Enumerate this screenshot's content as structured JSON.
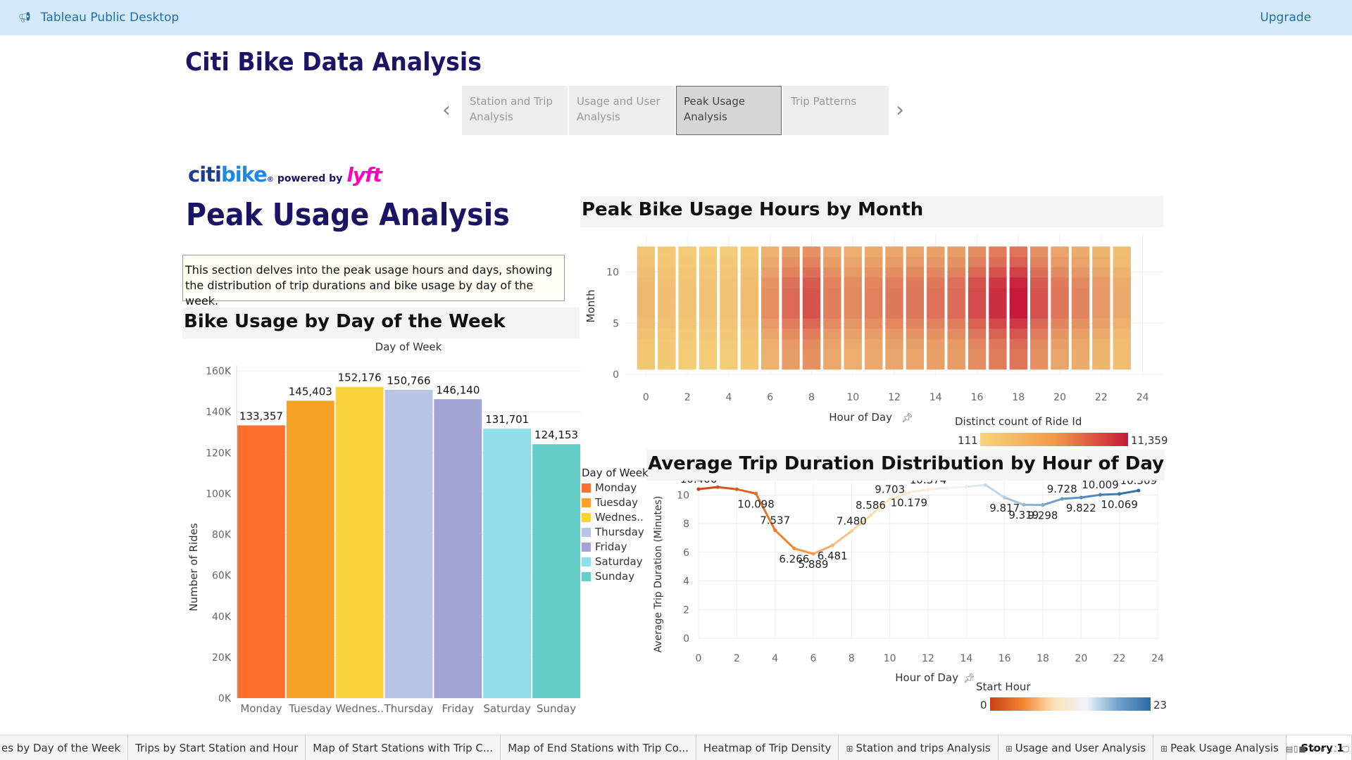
{
  "app": {
    "title": "Tableau Public Desktop",
    "upgrade": "Upgrade",
    "icon": "megaphone-icon"
  },
  "story": {
    "title": "Citi Bike Data Analysis",
    "points": [
      {
        "line1": "Station and Trip",
        "line2": "Analysis",
        "active": false
      },
      {
        "line1": "Usage and User",
        "line2": "Analysis",
        "active": false
      },
      {
        "line1": "Peak Usage",
        "line2": "Analysis",
        "active": true
      },
      {
        "line1": "Trip Patterns",
        "line2": "",
        "active": false
      }
    ],
    "prev_icon": "chevron-left-icon",
    "next_icon": "chevron-right-icon"
  },
  "logo": {
    "citi": "citi",
    "bike": "bike",
    "reg": "®",
    "powered": "powered by",
    "lyft": "lyft"
  },
  "dashboard": {
    "title": "Peak Usage Analysis",
    "description": "This section delves into the peak usage hours and days, showing the distribution of trip durations and bike usage by day of the week."
  },
  "bar_chart": {
    "title": "Bike Usage by Day of the Week",
    "header": "Day of Week",
    "ylabel": "Number of Rides",
    "yticks": [
      "0K",
      "20K",
      "40K",
      "60K",
      "80K",
      "100K",
      "120K",
      "140K",
      "160K"
    ],
    "legend_title": "Day of Week",
    "legend": [
      "Monday",
      "Tuesday",
      "Wednes..",
      "Thursday",
      "Friday",
      "Saturday",
      "Sunday"
    ]
  },
  "heatmap": {
    "title": "Peak Bike Usage Hours by Month",
    "xlabel": "Hour of Day",
    "ylabel": "Month",
    "xticks": [
      "0",
      "2",
      "4",
      "6",
      "8",
      "10",
      "12",
      "14",
      "16",
      "18",
      "20",
      "22",
      "24"
    ],
    "yticks": [
      "0",
      "5",
      "10"
    ],
    "legend_title": "Distinct count of Ride Id",
    "legend_min": "111",
    "legend_max": "11,359",
    "pin_icon": "pin-icon"
  },
  "line_chart": {
    "title": "Average Trip Duration Distribution by Hour of Day",
    "xlabel": "Hour of Day",
    "ylabel": "Average Trip Duration (Minutes)",
    "xticks": [
      "0",
      "2",
      "4",
      "6",
      "8",
      "10",
      "12",
      "14",
      "16",
      "18",
      "20",
      "22",
      "24"
    ],
    "yticks": [
      "0",
      "2",
      "4",
      "6",
      "8",
      "10"
    ],
    "legend_title": "Start Hour",
    "legend_min": "0",
    "legend_max": "23",
    "pin_icon": "pin-icon"
  },
  "chart_data": [
    {
      "type": "bar",
      "title": "Bike Usage by Day of the Week",
      "categories": [
        "Monday",
        "Tuesday",
        "Wednes..",
        "Thursday",
        "Friday",
        "Saturday",
        "Sunday"
      ],
      "values": [
        133357,
        145403,
        152176,
        150766,
        146140,
        131701,
        124153
      ],
      "labels": [
        "133,357",
        "145,403",
        "152,176",
        "150,766",
        "146,140",
        "131,701",
        "124,153"
      ],
      "colors": [
        "#ff6f30",
        "#f8a22a",
        "#fad23a",
        "#b8c4e4",
        "#a4a3d6",
        "#8fdde8",
        "#64cfc9"
      ],
      "xlabel": "Day of Week",
      "ylabel": "Number of Rides",
      "ylim": [
        0,
        160000
      ],
      "grid": true,
      "legend": "right"
    },
    {
      "type": "heatmap",
      "title": "Peak Bike Usage Hours by Month",
      "xlabel": "Hour of Day",
      "ylabel": "Month",
      "x": [
        0,
        1,
        2,
        3,
        4,
        5,
        6,
        7,
        8,
        9,
        10,
        11,
        12,
        13,
        14,
        15,
        16,
        17,
        18,
        19,
        20,
        21,
        22,
        23
      ],
      "y": [
        1,
        2,
        3,
        4,
        5,
        6,
        7,
        8,
        9,
        10,
        11,
        12
      ],
      "xlim": [
        -1,
        25
      ],
      "ylim": [
        0,
        13
      ],
      "color_min": 111,
      "color_max": 11359,
      "colors": [
        "#f6d47a",
        "#c71a3a"
      ],
      "hour_level": [
        0.18,
        0.14,
        0.12,
        0.12,
        0.12,
        0.16,
        0.4,
        0.6,
        0.72,
        0.5,
        0.44,
        0.48,
        0.52,
        0.54,
        0.56,
        0.6,
        0.76,
        0.9,
        1.0,
        0.72,
        0.54,
        0.46,
        0.36,
        0.26
      ],
      "month_level": [
        0.55,
        0.55,
        0.6,
        0.7,
        0.85,
        1.0,
        1.0,
        1.0,
        0.95,
        0.8,
        0.65,
        0.55
      ]
    },
    {
      "type": "line",
      "title": "Average Trip Duration Distribution by Hour of Day",
      "xlabel": "Hour of Day",
      "ylabel": "Average Trip Duration (Minutes)",
      "x": [
        0,
        1,
        2,
        3,
        4,
        5,
        6,
        7,
        8,
        9,
        10,
        11,
        12,
        13,
        14,
        15,
        16,
        17,
        18,
        19,
        20,
        21,
        22,
        23
      ],
      "y": [
        10.406,
        10.55,
        10.4,
        10.098,
        7.537,
        6.266,
        5.889,
        6.481,
        7.48,
        8.586,
        9.703,
        10.179,
        10.374,
        10.5,
        10.57,
        10.699,
        9.817,
        9.319,
        9.298,
        9.728,
        9.822,
        10.009,
        10.069,
        10.309
      ],
      "labels": [
        "10.406",
        "",
        "",
        "10.098",
        "7.537",
        "6.266",
        "5.889",
        "6.481",
        "7.480",
        "8.586",
        "9.703",
        "10.179",
        "10.374",
        "",
        "10.570",
        "10.699",
        "9.817",
        "9.319",
        "9.298",
        "9.728",
        "9.822",
        "10.009",
        "10.069",
        "10.309"
      ],
      "xlim": [
        0,
        24
      ],
      "ylim": [
        0,
        11
      ],
      "color_by": "Start Hour",
      "colors": [
        "#c8401a",
        "#f5822d",
        "#fde2b8",
        "#eef3f8",
        "#6fa1cc",
        "#2d6aa3"
      ],
      "grid": true
    }
  ],
  "tabs": [
    {
      "label": "es by Day of the Week",
      "icon": "",
      "active": false
    },
    {
      "label": "Trips by Start Station and Hour",
      "icon": "",
      "active": false
    },
    {
      "label": "Map of Start Stations with Trip C...",
      "icon": "",
      "active": false
    },
    {
      "label": "Map of End Stations with Trip Co...",
      "icon": "",
      "active": false
    },
    {
      "label": "Heatmap of Trip Density",
      "icon": "",
      "active": false
    },
    {
      "label": "Station and trips Analysis",
      "icon": "⊞",
      "active": false
    },
    {
      "label": "Usage and User Analysis",
      "icon": "⊞",
      "active": false
    },
    {
      "label": "Peak Usage Analysis",
      "icon": "⊞",
      "active": false
    },
    {
      "label": "Story 1",
      "icon": "▯",
      "active": true
    }
  ]
}
